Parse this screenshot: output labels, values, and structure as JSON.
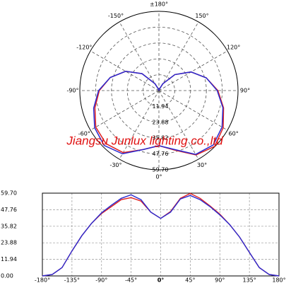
{
  "chart_data": [
    {
      "type": "polar",
      "annotation": "Jiangsu Junlux  lighting co.,ltd",
      "theta": [
        -180,
        -165,
        -150,
        -135,
        -120,
        -105,
        -90,
        -75,
        -60,
        -45,
        -30,
        -15,
        0,
        15,
        30,
        45,
        60,
        75,
        90,
        105,
        120,
        135,
        150,
        165,
        180
      ],
      "rlim": [
        0,
        59.7
      ],
      "rticks": [
        11.94,
        23.88,
        35.82,
        47.76,
        {
          "value": 59.7,
          "label": "59.70"
        }
      ],
      "thetaticks": [
        {
          "value": 180,
          "label": "±180°"
        },
        {
          "value": -150,
          "label": "-150°"
        },
        {
          "value": 150,
          "label": "150°"
        },
        {
          "value": -120,
          "label": "-120°"
        },
        {
          "value": 120,
          "label": "120°"
        },
        {
          "value": -90,
          "label": "-90°"
        },
        {
          "value": 90,
          "label": "90°"
        },
        {
          "value": -60,
          "label": "-60°"
        },
        {
          "value": 60,
          "label": "60°"
        },
        {
          "value": -30,
          "label": "-30°"
        },
        {
          "value": 30,
          "label": "30°"
        },
        {
          "value": 0,
          "label": "0°"
        }
      ],
      "series": [
        {
          "color": "#e02020",
          "values": [
            0,
            1,
            6,
            18,
            29,
            38,
            45,
            50,
            55,
            56.5,
            54,
            46,
            41.5,
            46.5,
            56,
            59.5,
            56,
            50.5,
            44.5,
            37,
            28,
            17,
            6,
            1,
            0
          ]
        },
        {
          "color": "#2a2ad0",
          "values": [
            0,
            1,
            6,
            18,
            29,
            38,
            45.5,
            51,
            56,
            58.5,
            55,
            46,
            41.5,
            46,
            55.5,
            58,
            55,
            50,
            44,
            37,
            28,
            17,
            6,
            1,
            0
          ]
        }
      ]
    },
    {
      "type": "line",
      "x": [
        -180,
        -165,
        -150,
        -135,
        -120,
        -105,
        -90,
        -75,
        -60,
        -45,
        -30,
        -15,
        0,
        15,
        30,
        45,
        60,
        75,
        90,
        105,
        120,
        135,
        150,
        165,
        180
      ],
      "xlim": [
        -180,
        180
      ],
      "xticks": [
        {
          "value": -180,
          "label": "-180°"
        },
        {
          "value": -135,
          "label": "-135°"
        },
        {
          "value": -90,
          "label": "-90°"
        },
        {
          "value": -45,
          "label": "-45°"
        },
        {
          "value": 0,
          "label": "0°"
        },
        {
          "value": 45,
          "label": "45°"
        },
        {
          "value": 90,
          "label": "90°"
        },
        {
          "value": 135,
          "label": "135°"
        },
        {
          "value": 180,
          "label": "180°"
        }
      ],
      "ylim": [
        0,
        59.7
      ],
      "yticks": [
        {
          "value": 0,
          "label": "0.00"
        },
        11.94,
        23.88,
        35.82,
        47.76,
        {
          "value": 59.7,
          "label": "59.70"
        }
      ],
      "grid": true,
      "series": [
        {
          "color": "#e02020",
          "values": [
            0,
            1,
            6,
            18,
            29,
            38,
            45,
            50,
            55,
            56.5,
            54,
            46,
            41.5,
            46.5,
            56,
            59.5,
            56,
            50.5,
            44.5,
            37,
            28,
            17,
            6,
            1,
            0
          ]
        },
        {
          "color": "#2a2ad0",
          "values": [
            0,
            1,
            6,
            18,
            29,
            38,
            45.5,
            51,
            56,
            58.5,
            55,
            46,
            41.5,
            46,
            55.5,
            58,
            55,
            50,
            44,
            37,
            28,
            17,
            6,
            1,
            0
          ]
        }
      ]
    }
  ]
}
